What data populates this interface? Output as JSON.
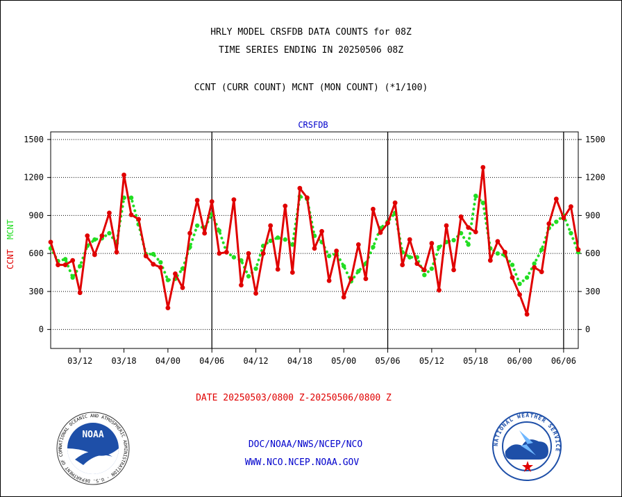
{
  "header": {
    "title_line1": "HRLY MODEL CRSFDB DATA COUNTS for 08Z",
    "title_line2": "TIME SERIES ENDING IN 20250506 08Z",
    "legend_line": "CCNT (CURR COUNT) MCNT (MON COUNT) (*1/100)"
  },
  "footer": {
    "date_range": "DATE 20250503/0800 Z-20250506/0800 Z",
    "org_path": "DOC/NOAA/NWS/NCEP/NCO",
    "website": "WWW.NCO.NCEP.NOAA.GOV",
    "noaa_logo_text": "NOAA",
    "nws_logo_text": "NATIONAL WEATHER SERVICE",
    "noaa_ring_text": "NATIONAL OCEANIC AND ATMOSPHERIC ADMINISTRATION · U.S. DEPARTMENT OF COMMERCE"
  },
  "colors": {
    "ccnt": "#e00000",
    "mcnt": "#22dd22",
    "axis": "#000000",
    "panel_label": "#0000cc"
  },
  "chart_data": {
    "type": "line",
    "title": "CRSFDB",
    "ylabel_left": [
      "CCNT",
      "MCNT"
    ],
    "ylim": [
      -150,
      1560
    ],
    "yticks": [
      0,
      300,
      600,
      900,
      1200,
      1500
    ],
    "xtick_labels": [
      "03/12",
      "03/18",
      "04/00",
      "04/06",
      "04/12",
      "04/18",
      "05/00",
      "05/06",
      "05/12",
      "05/18",
      "06/00",
      "06/06"
    ],
    "xtick_indices": [
      4,
      10,
      16,
      22,
      28,
      34,
      40,
      46,
      52,
      58,
      64,
      70
    ],
    "n_points": 73,
    "vertical_dividers_at_index": [
      22,
      46,
      70
    ],
    "grid": "horizontal dotted",
    "series": [
      {
        "name": "CCNT",
        "style": "solid-markers",
        "values": [
          690,
          510,
          510,
          545,
          290,
          740,
          590,
          740,
          920,
          610,
          1220,
          905,
          870,
          580,
          515,
          490,
          170,
          440,
          330,
          760,
          1020,
          760,
          1010,
          600,
          610,
          1025,
          350,
          600,
          285,
          600,
          820,
          475,
          975,
          450,
          1115,
          1040,
          640,
          775,
          385,
          620,
          255,
          400,
          670,
          400,
          950,
          765,
          840,
          1000,
          510,
          710,
          520,
          470,
          680,
          310,
          820,
          470,
          890,
          805,
          770,
          1280,
          545,
          695,
          610,
          410,
          275,
          120,
          490,
          455,
          835,
          1030,
          880,
          970,
          630
        ]
      },
      {
        "name": "MCNT",
        "style": "dotted",
        "values": [
          640,
          540,
          555,
          410,
          500,
          660,
          710,
          720,
          760,
          680,
          1040,
          1040,
          830,
          595,
          595,
          530,
          390,
          400,
          480,
          650,
          820,
          800,
          910,
          780,
          610,
          570,
          545,
          420,
          480,
          660,
          700,
          725,
          710,
          670,
          1050,
          1030,
          740,
          690,
          580,
          600,
          500,
          380,
          460,
          520,
          650,
          800,
          850,
          920,
          610,
          570,
          570,
          430,
          480,
          650,
          690,
          705,
          760,
          670,
          1055,
          1000,
          640,
          600,
          585,
          510,
          360,
          410,
          520,
          630,
          800,
          850,
          900,
          760,
          610
        ]
      }
    ]
  }
}
